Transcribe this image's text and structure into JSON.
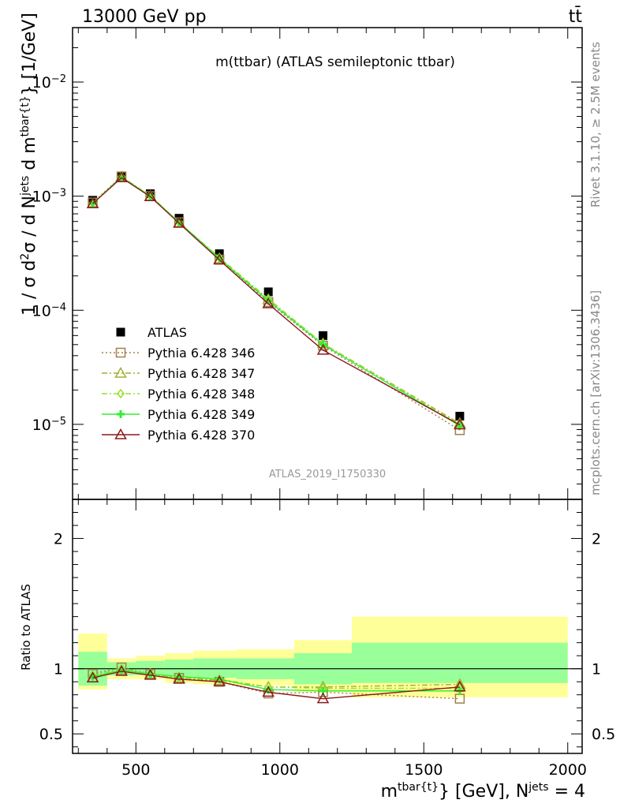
{
  "header": {
    "beam": "13000 GeV pp",
    "process": "tt̄"
  },
  "side_labels": {
    "rivet": "Rivet 3.1.10, ≥ 2.5M events",
    "mcplots": "mcplots.cern.ch [arXiv:1306.3436]"
  },
  "chart_data": [
    {
      "type": "line",
      "panel": "main",
      "title": "m(ttbar) (ATLAS semileptonic ttbar)",
      "watermark": "ATLAS_2019_I1750330",
      "ylabel": "1 / σ d²σ / d N^jets d m^tbar{t} [1/GeV]",
      "ylabel_parts": {
        "p1": "1 / σ d",
        "sup1": "2",
        "p2": "σ / d N",
        "sup2": "jets",
        "p3": " d m",
        "sup3": "tbar{t}",
        "p4": "} [1/GeV]"
      },
      "yscale": "log",
      "ylim": [
        2.2e-06,
        0.03
      ],
      "xlim": [
        280,
        2050
      ],
      "y_ticks": [
        {
          "value": 0.01,
          "base": "10",
          "exp": "−2"
        },
        {
          "value": 0.001,
          "base": "10",
          "exp": "−3"
        },
        {
          "value": 0.0001,
          "base": "10",
          "exp": "−4"
        },
        {
          "value": 1e-05,
          "base": "10",
          "exp": "−5"
        }
      ],
      "x": [
        350,
        450,
        550,
        650,
        790,
        960,
        1150,
        1625
      ],
      "legend_position": "lower-left",
      "series": [
        {
          "name": "ATLAS",
          "color": "#000000",
          "marker": "filled-square",
          "line": "none",
          "values": [
            0.00092,
            0.00148,
            0.00105,
            0.00064,
            0.000313,
            0.000145,
            6e-05,
            1.18e-05
          ]
        },
        {
          "name": "Pythia 6.428 346",
          "color": "#a0804a",
          "marker": "open-square",
          "line": "dotted",
          "values": [
            0.00088,
            0.00149,
            0.001,
            0.00059,
            0.000278,
            0.000118,
            4.9e-05,
            8.9e-06
          ]
        },
        {
          "name": "Pythia 6.428 347",
          "color": "#a0b030",
          "marker": "open-triangle",
          "line": "dashdot",
          "values": [
            0.00086,
            0.00147,
            0.001,
            0.00058,
            0.000282,
            0.000124,
            5.1e-05,
            1.02e-05
          ]
        },
        {
          "name": "Pythia 6.428 348",
          "color": "#99e02e",
          "marker": "open-diamond",
          "line": "dashdot",
          "values": [
            0.00087,
            0.00148,
            0.00101,
            0.00059,
            0.00029,
            0.000126,
            5.1e-05,
            9.9e-06
          ]
        },
        {
          "name": "Pythia 6.428 349",
          "color": "#33ee33",
          "marker": "cross",
          "line": "solid",
          "values": [
            0.00086,
            0.00147,
            0.001,
            0.00059,
            0.000285,
            0.000121,
            5e-05,
            9.7e-06
          ]
        },
        {
          "name": "Pythia 6.428 370",
          "color": "#8b1a1a",
          "marker": "open-triangle",
          "line": "solid",
          "values": [
            0.00086,
            0.00145,
            0.00099,
            0.00058,
            0.000276,
            0.000114,
            4.47e-05,
            9.9e-06
          ]
        }
      ]
    },
    {
      "type": "line",
      "panel": "ratio",
      "ylabel": "Ratio to ATLAS",
      "yscale": "linear",
      "ylim": [
        0.35,
        2.3
      ],
      "y_ticks": [
        0.5,
        1,
        2
      ],
      "y_tick_labels": [
        "0.5",
        "1",
        "2"
      ],
      "x_ticks": [
        500,
        1000,
        1500,
        2000
      ],
      "x_tick_labels": [
        "500",
        "1000",
        "1500",
        "2000"
      ],
      "xlabel_parts": {
        "m": "m",
        "sup_m": "tbar{t}",
        "mid": "} [GeV], N",
        "sup_n": "jets",
        "end": " = 4"
      },
      "bands": [
        {
          "x0": 300,
          "x1": 400,
          "inner": [
            0.87,
            1.13
          ],
          "outer": [
            0.84,
            1.27
          ]
        },
        {
          "x0": 400,
          "x1": 500,
          "inner": [
            0.95,
            1.05
          ],
          "outer": [
            0.92,
            1.08
          ]
        },
        {
          "x0": 500,
          "x1": 600,
          "inner": [
            0.95,
            1.06
          ],
          "outer": [
            0.92,
            1.1
          ]
        },
        {
          "x0": 600,
          "x1": 700,
          "inner": [
            0.94,
            1.07
          ],
          "outer": [
            0.89,
            1.12
          ]
        },
        {
          "x0": 700,
          "x1": 850,
          "inner": [
            0.93,
            1.08
          ],
          "outer": [
            0.88,
            1.14
          ]
        },
        {
          "x0": 850,
          "x1": 1050,
          "inner": [
            0.92,
            1.08
          ],
          "outer": [
            0.87,
            1.15
          ]
        },
        {
          "x0": 1050,
          "x1": 1250,
          "inner": [
            0.88,
            1.12
          ],
          "outer": [
            0.82,
            1.22
          ]
        },
        {
          "x0": 1250,
          "x1": 2000,
          "inner": [
            0.89,
            1.2
          ],
          "outer": [
            0.78,
            1.4
          ]
        }
      ],
      "x": [
        350,
        450,
        550,
        650,
        790,
        960,
        1150,
        1625
      ],
      "series": [
        {
          "name": "Pythia 6.428 346",
          "color": "#a0804a",
          "marker": "open-square",
          "line": "dotted",
          "values": [
            0.96,
            1.01,
            0.96,
            0.93,
            0.9,
            0.81,
            0.82,
            0.77
          ]
        },
        {
          "name": "Pythia 6.428 347",
          "color": "#a0b030",
          "marker": "open-triangle",
          "line": "dashdot",
          "values": [
            0.93,
            0.99,
            0.96,
            0.93,
            0.91,
            0.86,
            0.86,
            0.88
          ]
        },
        {
          "name": "Pythia 6.428 348",
          "color": "#99e02e",
          "marker": "open-diamond",
          "line": "dashdot",
          "values": [
            0.95,
            1.0,
            0.96,
            0.93,
            0.92,
            0.86,
            0.85,
            0.85
          ]
        },
        {
          "name": "Pythia 6.428 349",
          "color": "#33ee33",
          "marker": "cross",
          "line": "solid",
          "values": [
            0.94,
            0.99,
            0.96,
            0.94,
            0.92,
            0.84,
            0.83,
            0.83
          ]
        },
        {
          "name": "Pythia 6.428 370",
          "color": "#8b1a1a",
          "marker": "open-triangle",
          "line": "solid",
          "values": [
            0.93,
            0.98,
            0.95,
            0.92,
            0.9,
            0.82,
            0.77,
            0.86
          ]
        }
      ]
    }
  ]
}
